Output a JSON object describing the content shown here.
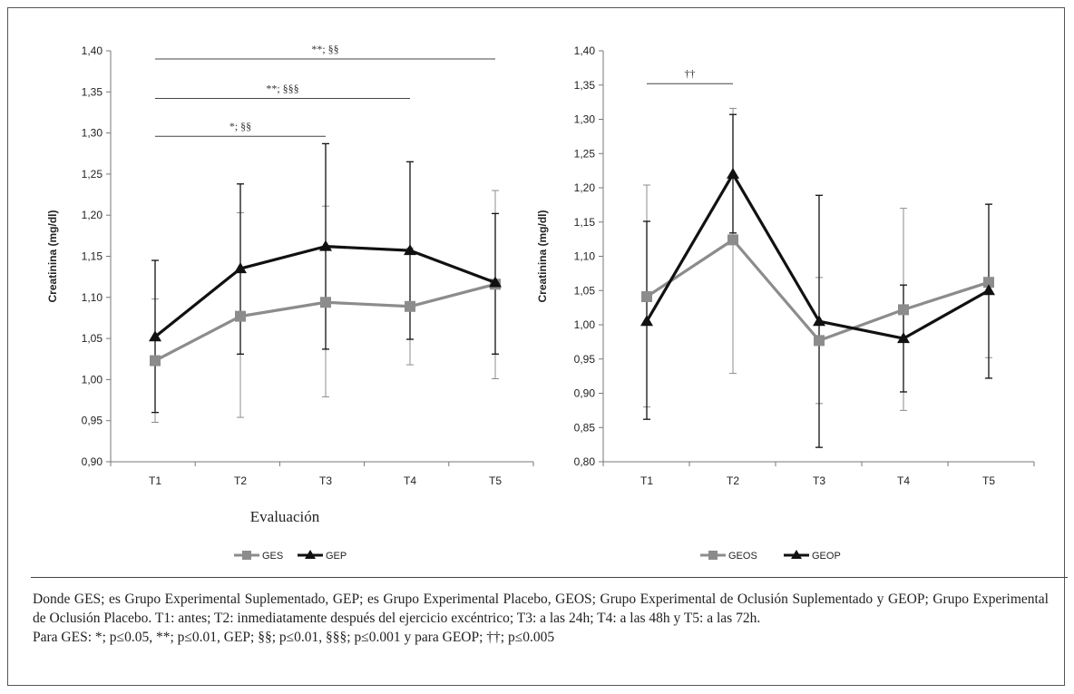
{
  "chart_data": [
    {
      "type": "line",
      "title": "",
      "xlabel": "Evaluación",
      "ylabel": "Creatinina (mg/dl)",
      "ylim": [
        0.9,
        1.4
      ],
      "yticks": [
        0.9,
        0.95,
        1.0,
        1.05,
        1.1,
        1.15,
        1.2,
        1.25,
        1.3,
        1.35,
        1.4
      ],
      "ytick_labels": [
        "0,90",
        "0,95",
        "1,00",
        "1,05",
        "1,10",
        "1,15",
        "1,20",
        "1,25",
        "1,30",
        "1,35",
        "1,40"
      ],
      "categories": [
        "T1",
        "T2",
        "T3",
        "T4",
        "T5"
      ],
      "legend_position": "bottom",
      "grid": false,
      "series": [
        {
          "name": "GES",
          "marker": "square",
          "color": "#8c8c8c",
          "values": [
            1.023,
            1.077,
            1.094,
            1.089,
            1.116
          ],
          "err_low": [
            0.948,
            0.954,
            0.979,
            1.018,
            1.001
          ],
          "err_high": [
            1.098,
            1.203,
            1.211,
            1.16,
            1.23
          ]
        },
        {
          "name": "GEP",
          "marker": "triangle",
          "color": "#111111",
          "values": [
            1.052,
            1.135,
            1.162,
            1.157,
            1.118
          ],
          "err_low": [
            0.96,
            1.031,
            1.037,
            1.049,
            1.031
          ],
          "err_high": [
            1.145,
            1.238,
            1.287,
            1.265,
            1.202
          ]
        }
      ],
      "annotations": [
        {
          "text": "**; §§",
          "from": "T1",
          "to": "T5",
          "y": 1.39
        },
        {
          "text": "**; §§§",
          "from": "T1",
          "to": "T4",
          "y": 1.342
        },
        {
          "text": "*; §§",
          "from": "T1",
          "to": "T3",
          "y": 1.296
        }
      ]
    },
    {
      "type": "line",
      "title": "",
      "xlabel": "",
      "ylabel": "Creatinina (mg/dl)",
      "ylim": [
        0.8,
        1.4
      ],
      "yticks": [
        0.8,
        0.85,
        0.9,
        0.95,
        1.0,
        1.05,
        1.1,
        1.15,
        1.2,
        1.25,
        1.3,
        1.35,
        1.4
      ],
      "ytick_labels": [
        "0,80",
        "0,85",
        "0,90",
        "0,95",
        "1,00",
        "1,05",
        "1,10",
        "1,15",
        "1,20",
        "1,25",
        "1,30",
        "1,35",
        "1,40"
      ],
      "categories": [
        "T1",
        "T2",
        "T3",
        "T4",
        "T5"
      ],
      "legend_position": "bottom",
      "grid": false,
      "series": [
        {
          "name": "GEOS",
          "marker": "square",
          "color": "#8c8c8c",
          "values": [
            1.041,
            1.124,
            0.977,
            1.022,
            1.062
          ],
          "err_low": [
            0.88,
            0.929,
            0.885,
            0.875,
            0.952
          ],
          "err_high": [
            1.204,
            1.316,
            1.069,
            1.17,
            1.176
          ]
        },
        {
          "name": "GEOP",
          "marker": "triangle",
          "color": "#111111",
          "values": [
            1.005,
            1.22,
            1.005,
            0.98,
            1.05
          ],
          "err_low": [
            0.862,
            1.134,
            0.821,
            0.902,
            0.922
          ],
          "err_high": [
            1.151,
            1.307,
            1.189,
            1.058,
            1.176
          ]
        }
      ],
      "annotations": [
        {
          "text": "††",
          "from": "T1",
          "to": "T2",
          "y": 1.352
        }
      ]
    }
  ],
  "caption": {
    "line1": "Donde GES; es Grupo Experimental Suplementado, GEP; es Grupo Experimental Placebo, GEOS; Grupo Experimental de Oclusión Suplementado y GEOP; Grupo Experimental de Oclusión Placebo. T1: antes; T2: inmediatamente después del ejercicio excéntrico; T3: a las 24h; T4: a las 48h y T5: a las 72h.",
    "line2": "Para GES: *; p≤0.05, **; p≤0.01, GEP; §§; p≤0.01, §§§; p≤0.001 y para GEOP; ††; p≤0.005"
  }
}
